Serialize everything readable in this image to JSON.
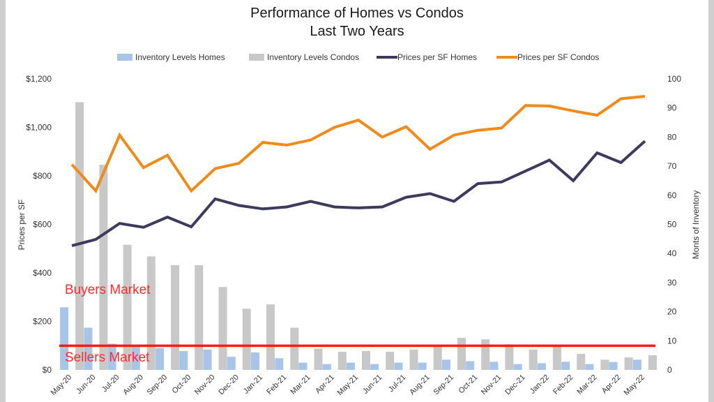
{
  "chart_data": {
    "type": "bar+line",
    "title": "Performance of Homes vs Condos",
    "subtitle": "Last Two Years",
    "y_left_label": "Prices per SF",
    "y_right_label": "Monts of Inventory",
    "y_left_ticks": [
      "$0",
      "$200",
      "$400",
      "$600",
      "$800",
      "$1,000",
      "$1,200"
    ],
    "y_right_ticks": [
      "0",
      "10",
      "20",
      "30",
      "40",
      "50",
      "60",
      "70",
      "80",
      "90",
      "100"
    ],
    "y_left_range": [
      0,
      1200
    ],
    "y_right_range": [
      0,
      100
    ],
    "categories": [
      "May-20",
      "Jun-20",
      "Jul-20",
      "Aug-20",
      "Sep-20",
      "Oct-20",
      "Nov-20",
      "Dec-20",
      "Jan-21",
      "Feb-21",
      "Mar-21",
      "Apr-21",
      "May-21",
      "Jun-21",
      "Jul-21",
      "Aug-21",
      "Sep-21",
      "Oct-21",
      "Nov-21",
      "Dec-21",
      "Jan-22",
      "Feb-22",
      "Mar-22",
      "Apr-22",
      "May-22"
    ],
    "legend_position": "top",
    "grid": false,
    "bar_series": [
      {
        "name": "Inventory Levels Homes",
        "color": "#a8c4e8",
        "axis": "right",
        "values": [
          21.5,
          14.5,
          9,
          8,
          7.5,
          6.5,
          7,
          4.5,
          6,
          4,
          2.5,
          2,
          2.5,
          2,
          2.5,
          2.5,
          3.5,
          3,
          2.8,
          2,
          2.3,
          2.8,
          2,
          2.7,
          3.5
        ]
      },
      {
        "name": "Inventory Levels Condos",
        "color": "#c8c8c8",
        "axis": "right",
        "values": [
          92,
          70.5,
          43,
          39,
          36,
          36,
          28.5,
          21,
          22.5,
          14.5,
          7.3,
          6.2,
          6.5,
          6.2,
          7,
          8.5,
          11,
          10.5,
          8.8,
          7,
          8,
          5.5,
          3.5,
          4.3,
          5
        ]
      }
    ],
    "line_series": [
      {
        "name": "Prices per SF Homes",
        "color": "#3d3a5c",
        "axis": "left",
        "values": [
          512,
          538,
          604,
          588,
          630,
          590,
          705,
          678,
          664,
          672,
          695,
          672,
          668,
          672,
          712,
          727,
          695,
          768,
          775,
          820,
          865,
          780,
          895,
          855,
          943
        ]
      },
      {
        "name": "Prices per SF Condos",
        "color": "#f08a1a",
        "axis": "left",
        "values": [
          847,
          738,
          968,
          834,
          885,
          738,
          830,
          852,
          938,
          927,
          948,
          1000,
          1030,
          960,
          1003,
          910,
          968,
          988,
          997,
          1090,
          1088,
          1068,
          1050,
          1118,
          1128
        ]
      }
    ],
    "annotations": [
      {
        "text": "Buyers Market"
      },
      {
        "text": "Sellers Market"
      }
    ],
    "threshold": {
      "axis": "right",
      "value": 8.3,
      "color": "#ff1a1a"
    }
  }
}
